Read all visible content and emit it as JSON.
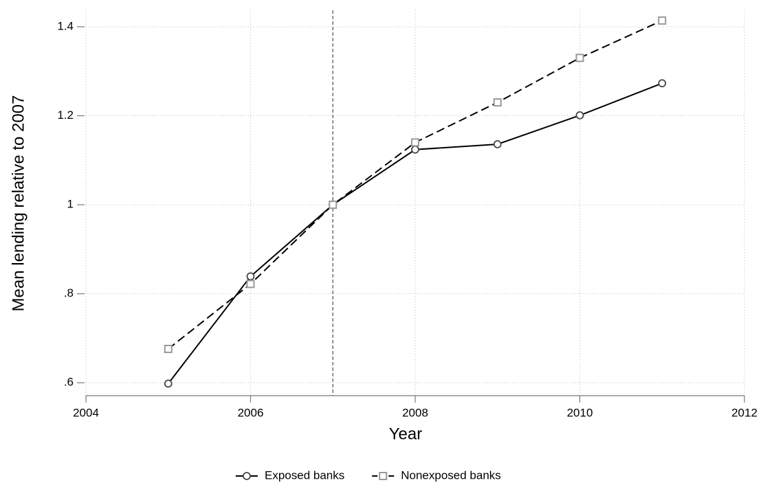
{
  "chart_data": {
    "type": "line",
    "xlabel": "Year",
    "ylabel": "Mean lending relative to 2007",
    "x": [
      2005,
      2006,
      2007,
      2008,
      2009,
      2010,
      2011
    ],
    "series": [
      {
        "name": "Exposed banks",
        "color": "#000000",
        "marker_color": "#444444",
        "marker": "circle",
        "dash": false,
        "values": [
          0.598,
          0.839,
          1.0,
          1.124,
          1.136,
          1.201,
          1.273
        ]
      },
      {
        "name": "Nonexposed banks",
        "color": "#000000",
        "marker_color": "#999999",
        "marker": "square",
        "dash": true,
        "values": [
          0.676,
          0.822,
          1.0,
          1.14,
          1.23,
          1.33,
          1.414
        ]
      }
    ],
    "xlim": [
      2004,
      2012
    ],
    "xticks": [
      2004,
      2006,
      2008,
      2010,
      2012
    ],
    "ylim": [
      0.571,
      1.437
    ],
    "yticks": [
      {
        "value": 0.6,
        "label": ".6"
      },
      {
        "value": 0.8,
        "label": ".8"
      },
      1,
      1.2,
      1.4
    ],
    "vline": 2007,
    "grid": true,
    "legend": "bottom"
  }
}
